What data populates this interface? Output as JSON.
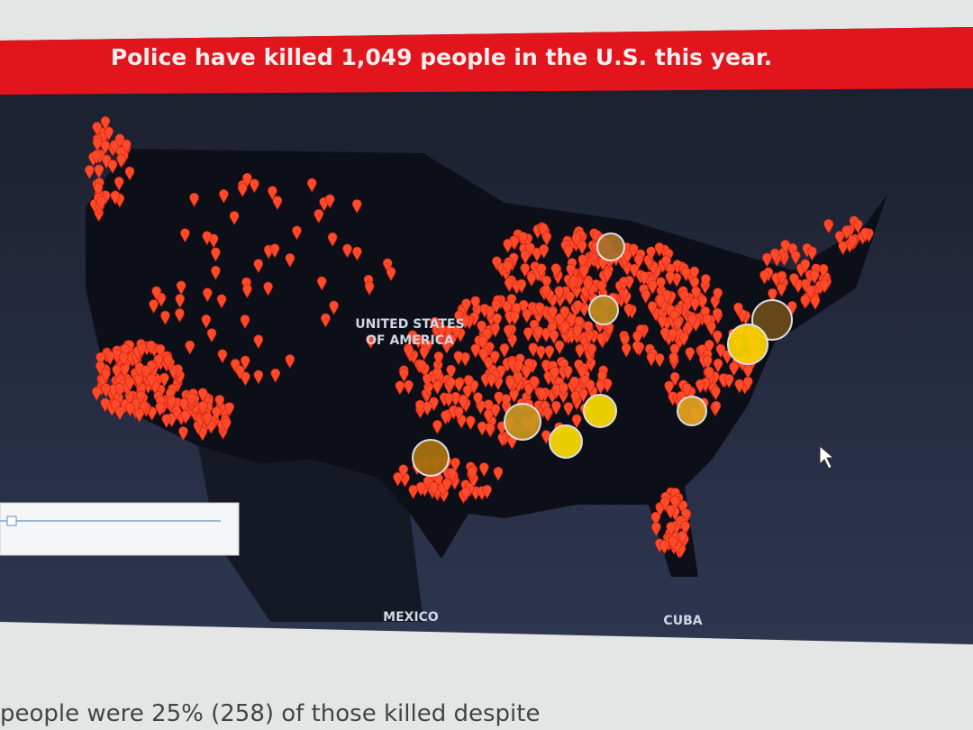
{
  "banner": {
    "title": "Police have killed 1,049 people in the U.S. this year."
  },
  "map": {
    "labels": [
      "UNITED STATES",
      "OF AMERICA",
      "MEXICO",
      "CUBA"
    ]
  },
  "footer": {
    "text": "people were 25% (258) of those killed despite"
  }
}
